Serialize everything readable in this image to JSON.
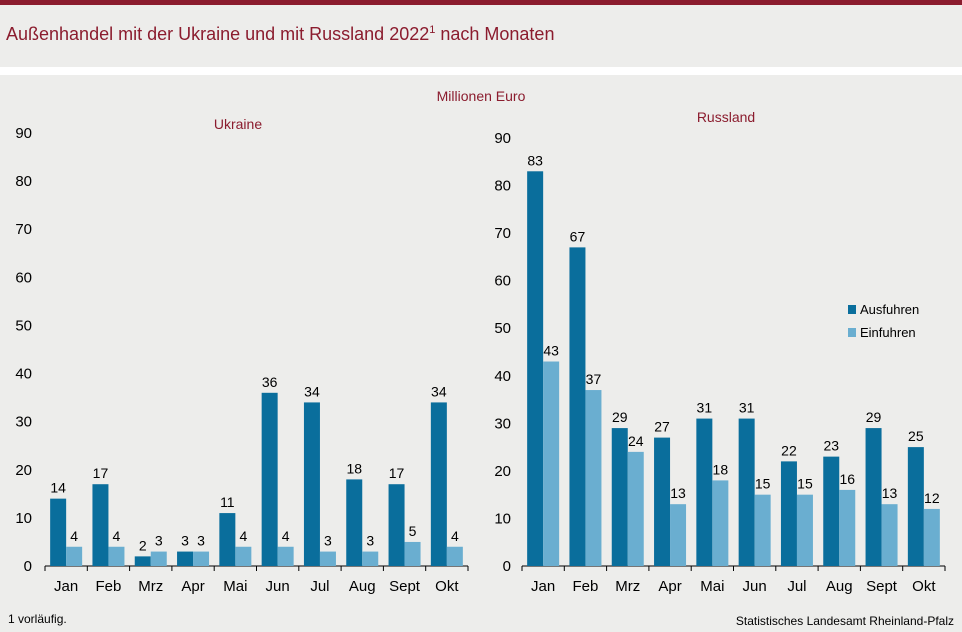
{
  "title": "Außenhandel mit der Ukraine und mit Russland 2022",
  "title_sup": "1",
  "unit": "Millionen Euro",
  "footnote": "1 vorläufig.",
  "source": "Statistisches Landesamt Rheinland-Pfalz",
  "colors": {
    "Ausfuhren": "#0a6e9c",
    "Einfuhren": "#6aaed0",
    "title": "#8b1c2e"
  },
  "chart_data": [
    {
      "type": "bar",
      "title": "Ukraine",
      "categories": [
        "Jan",
        "Feb",
        "Mrz",
        "Apr",
        "Mai",
        "Jun",
        "Jul",
        "Aug",
        "Sept",
        "Okt"
      ],
      "ylim": [
        0,
        90
      ],
      "yticks": [
        0,
        10,
        20,
        30,
        40,
        50,
        60,
        70,
        80,
        90
      ],
      "series": [
        {
          "name": "Ausfuhren",
          "values": [
            14,
            17,
            2,
            3,
            11,
            36,
            34,
            18,
            17,
            34
          ]
        },
        {
          "name": "Einfuhren",
          "values": [
            4,
            4,
            3,
            3,
            4,
            4,
            3,
            3,
            5,
            4
          ]
        }
      ],
      "legend": "none"
    },
    {
      "type": "bar",
      "title": "Russland",
      "categories": [
        "Jan",
        "Feb",
        "Mrz",
        "Apr",
        "Mai",
        "Jun",
        "Jul",
        "Aug",
        "Sept",
        "Okt"
      ],
      "ylim": [
        0,
        90
      ],
      "yticks": [
        0,
        10,
        20,
        30,
        40,
        50,
        60,
        70,
        80,
        90
      ],
      "series": [
        {
          "name": "Ausfuhren",
          "values": [
            83,
            67,
            29,
            27,
            31,
            31,
            22,
            23,
            29,
            25
          ]
        },
        {
          "name": "Einfuhren",
          "values": [
            43,
            37,
            24,
            13,
            18,
            15,
            15,
            16,
            13,
            12
          ]
        }
      ],
      "legend": "right"
    }
  ]
}
